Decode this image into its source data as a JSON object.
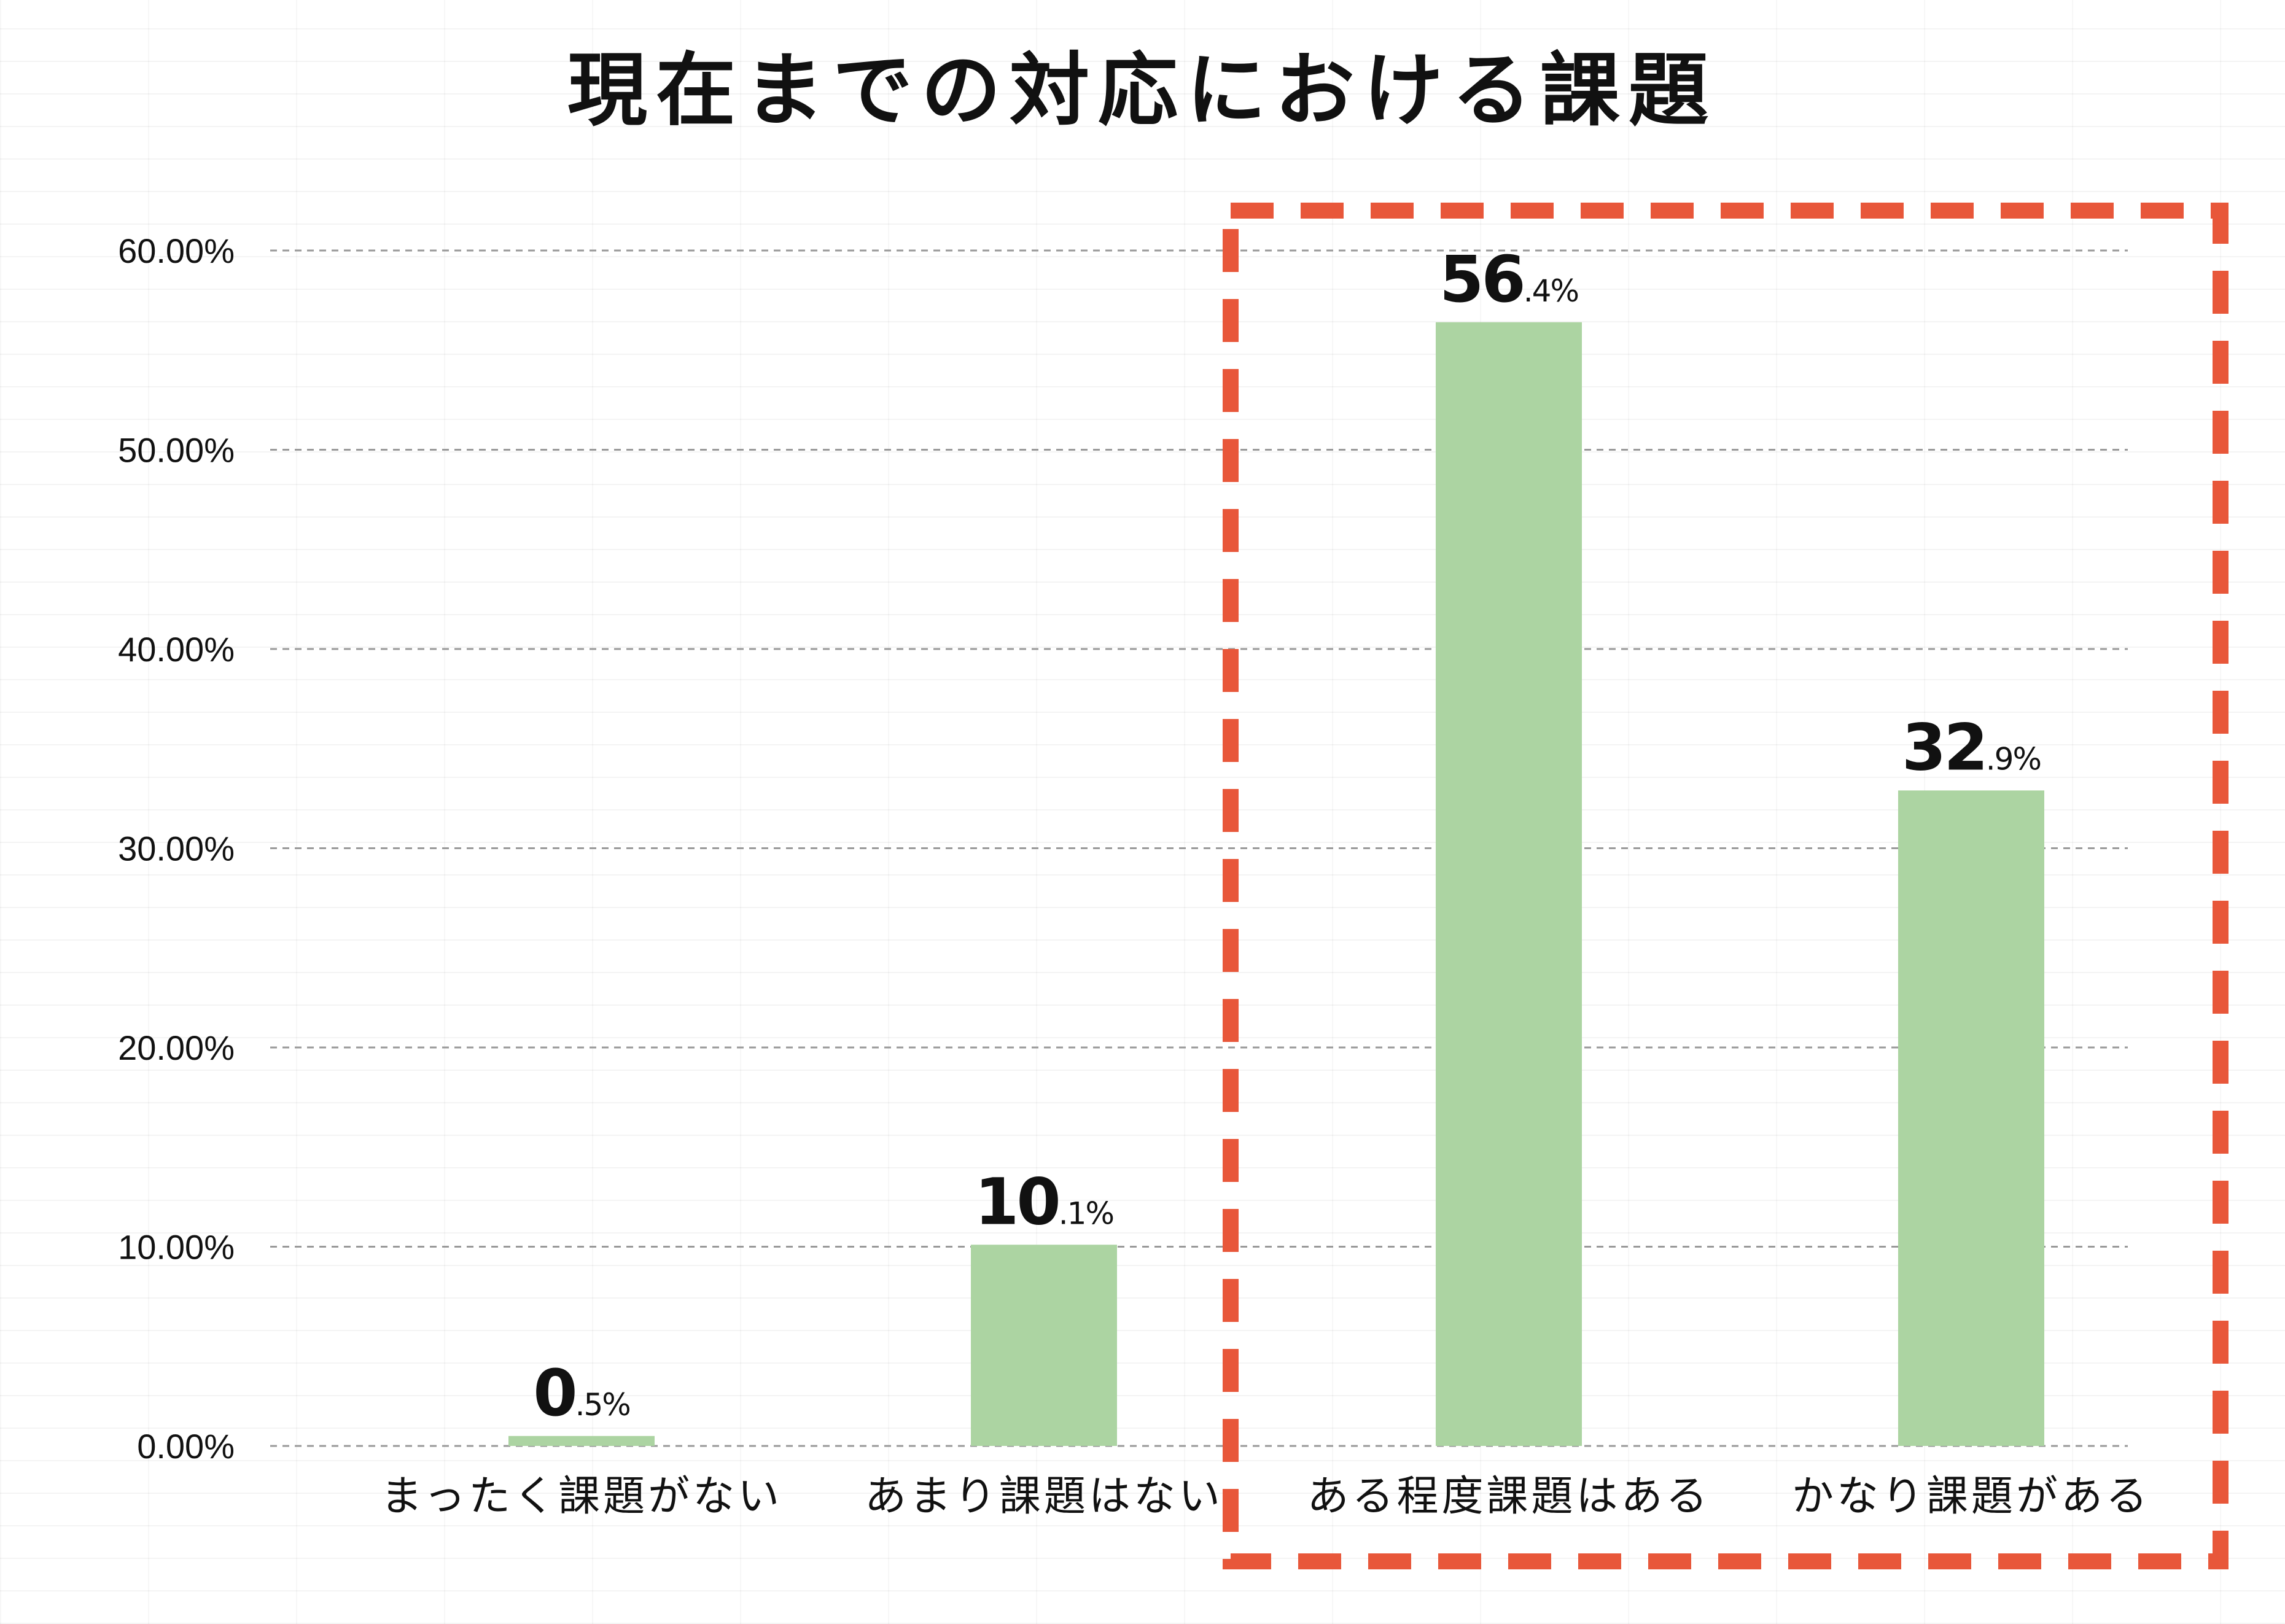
{
  "chart_data": {
    "type": "bar",
    "title": "現在までの対応における課題",
    "categories": [
      "まったく課題がない",
      "あまり課題はない",
      "ある程度課題はある",
      "かなり課題がある"
    ],
    "values": [
      0.5,
      10.1,
      56.4,
      32.9
    ],
    "data_labels": [
      {
        "main": "0",
        "sub": ".5%"
      },
      {
        "main": "10",
        "sub": ".1%"
      },
      {
        "main": "56",
        "sub": ".4%"
      },
      {
        "main": "32",
        "sub": ".9%"
      }
    ],
    "y_ticks": [
      "0.00%",
      "10.00%",
      "20.00%",
      "30.00%",
      "40.00%",
      "50.00%",
      "60.00%"
    ],
    "ylim": [
      0,
      60
    ],
    "grid": true,
    "legend": "none",
    "highlight": {
      "categories": [
        "ある程度課題はある",
        "かなり課題がある"
      ],
      "style": "dashed-box"
    },
    "colors": {
      "bar": "#acd4a2",
      "highlight_box": "#e8573a",
      "gridline": "#9a9a9a",
      "text": "#111111"
    }
  }
}
